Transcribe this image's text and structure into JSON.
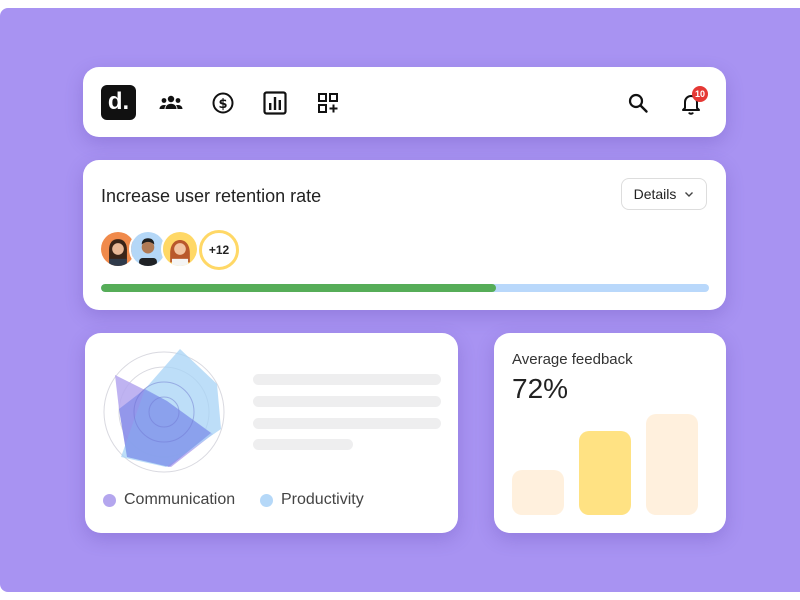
{
  "nav": {
    "logo_text": "d.",
    "icons": [
      "users-icon",
      "dollar-icon",
      "chart-icon",
      "apps-icon",
      "search-icon",
      "bell-icon"
    ],
    "notification_count": "10"
  },
  "goal": {
    "title": "Increase user retention rate",
    "details_label": "Details",
    "extra_members": "+12",
    "progress": 0.65
  },
  "skills": {
    "legend": [
      {
        "label": "Communication",
        "color": "#b4a6ee"
      },
      {
        "label": "Productivity",
        "color": "#b5d8f8"
      }
    ]
  },
  "feedback": {
    "title": "Average feedback",
    "value": "72%",
    "bars": [
      0.32,
      0.6,
      0.72
    ],
    "bar_colors": [
      "#fff0dd",
      "#ffe283",
      "#fff0dd"
    ]
  }
}
